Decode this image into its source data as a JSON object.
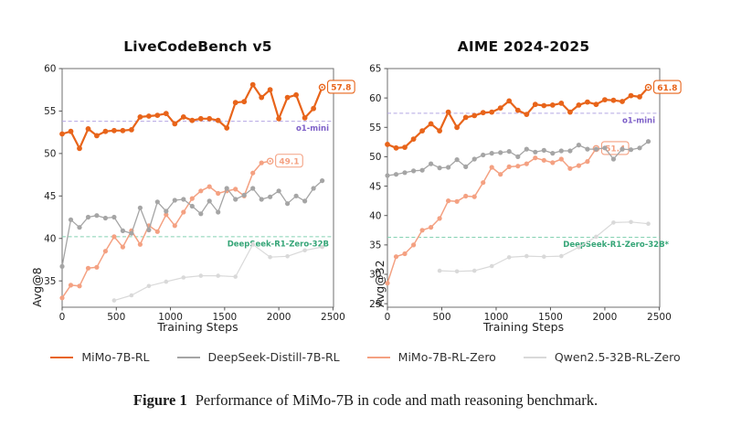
{
  "caption": {
    "label": "Figure 1",
    "text": "Performance of MiMo-7B in code and math reasoning benchmark."
  },
  "legend": {
    "items": [
      {
        "label": "MiMo-7B-RL",
        "color": "#e8641a"
      },
      {
        "label": "DeepSeek-Distill-7B-RL",
        "color": "#a5a5a5"
      },
      {
        "label": "MiMo-7B-RL-Zero",
        "color": "#f4a182"
      },
      {
        "label": "Qwen2.5-32B-RL-Zero",
        "color": "#d9d9d9"
      }
    ]
  },
  "chart_data": [
    {
      "type": "line",
      "title": "LiveCodeBench v5",
      "xlabel": "Training Steps",
      "ylabel": "Avg@8",
      "xlim": [
        0,
        2505
      ],
      "ylim": [
        31.9,
        60.0
      ],
      "xticks": [
        0,
        500,
        1000,
        1500,
        2000,
        2500
      ],
      "yticks": [
        35,
        40,
        45,
        50,
        55,
        60
      ],
      "legend_position": "below-figure",
      "grid": false,
      "ref_lines": [
        {
          "label": "o1-mini",
          "value": 53.8,
          "line_color": "#b4a6e4",
          "text_color": "#7e60c8",
          "label_overflow": false
        },
        {
          "label": "DeepSeek-R1-Zero-32B",
          "value": 40.2,
          "line_color": "#85d1b2",
          "text_color": "#35a577",
          "label_overflow": false
        }
      ],
      "series": [
        {
          "name": "MiMo-7B-RL",
          "color": "#e8641a",
          "end_label": "57.8",
          "x": [
            0,
            80,
            160,
            240,
            320,
            400,
            480,
            560,
            640,
            720,
            800,
            880,
            960,
            1040,
            1120,
            1200,
            1280,
            1360,
            1440,
            1520,
            1600,
            1680,
            1760,
            1840,
            1920,
            2000,
            2080,
            2160,
            2240,
            2320,
            2400
          ],
          "y": [
            52.3,
            52.6,
            50.6,
            52.9,
            52.1,
            52.6,
            52.7,
            52.7,
            52.8,
            54.3,
            54.4,
            54.5,
            54.7,
            53.5,
            54.3,
            53.9,
            54.1,
            54.1,
            53.9,
            53.0,
            56.0,
            56.1,
            58.1,
            56.6,
            57.5,
            54.1,
            56.6,
            56.9,
            54.2,
            55.3,
            57.8
          ]
        },
        {
          "name": "DeepSeek-Distill-7B-RL",
          "color": "#a5a5a5",
          "end_label": null,
          "x": [
            0,
            80,
            160,
            240,
            320,
            400,
            480,
            560,
            640,
            720,
            800,
            880,
            960,
            1040,
            1120,
            1200,
            1280,
            1360,
            1440,
            1520,
            1600,
            1680,
            1760,
            1840,
            1920,
            2000,
            2080,
            2160,
            2240,
            2320,
            2400
          ],
          "y": [
            36.7,
            42.2,
            41.3,
            42.5,
            42.7,
            42.4,
            42.5,
            40.9,
            40.6,
            43.6,
            41.0,
            44.3,
            43.2,
            44.5,
            44.6,
            43.8,
            42.9,
            44.4,
            43.1,
            45.9,
            44.6,
            45.1,
            45.9,
            44.6,
            44.9,
            45.6,
            44.1,
            45.0,
            44.4,
            45.9,
            46.8
          ]
        },
        {
          "name": "MiMo-7B-RL-Zero",
          "color": "#f4a182",
          "end_label": "49.1",
          "x": [
            0,
            80,
            160,
            240,
            320,
            400,
            480,
            560,
            640,
            720,
            800,
            880,
            960,
            1040,
            1120,
            1200,
            1280,
            1360,
            1440,
            1520,
            1600,
            1680,
            1760,
            1840,
            1920
          ],
          "y": [
            33.0,
            34.5,
            34.4,
            36.5,
            36.6,
            38.5,
            40.2,
            39.0,
            40.9,
            39.3,
            41.5,
            40.8,
            42.8,
            41.5,
            43.1,
            44.7,
            45.6,
            46.1,
            45.3,
            45.6,
            45.8,
            45.0,
            47.7,
            48.9,
            49.1
          ]
        },
        {
          "name": "Qwen2.5-32B-RL-Zero",
          "color": "#d9d9d9",
          "end_label": null,
          "x": [
            480,
            640,
            800,
            960,
            1120,
            1280,
            1440,
            1600,
            1760,
            1920,
            2080,
            2240,
            2400
          ],
          "y": [
            32.7,
            33.3,
            34.4,
            34.9,
            35.4,
            35.6,
            35.6,
            35.5,
            39.3,
            37.8,
            37.9,
            38.6,
            39.0
          ]
        }
      ]
    },
    {
      "type": "line",
      "title": "AIME 2024-2025",
      "xlabel": "Training Steps",
      "ylabel": "Avg@32",
      "xlim": [
        0,
        2505
      ],
      "ylim": [
        24.4,
        65.0
      ],
      "xticks": [
        0,
        500,
        1000,
        1500,
        2000,
        2500
      ],
      "yticks": [
        25,
        30,
        35,
        40,
        45,
        50,
        55,
        60,
        65
      ],
      "legend_position": "below-figure",
      "grid": false,
      "ref_lines": [
        {
          "label": "o1-mini",
          "value": 57.4,
          "line_color": "#b4a6e4",
          "text_color": "#7e60c8",
          "label_overflow": false
        },
        {
          "label": "DeepSeek-R1-Zero-32B*",
          "value": 36.3,
          "line_color": "#85d1b2",
          "text_color": "#35a577",
          "label_overflow": true
        }
      ],
      "series": [
        {
          "name": "MiMo-7B-RL",
          "color": "#e8641a",
          "end_label": "61.8",
          "x": [
            0,
            80,
            160,
            240,
            320,
            400,
            480,
            560,
            640,
            720,
            800,
            880,
            960,
            1040,
            1120,
            1200,
            1280,
            1360,
            1440,
            1520,
            1600,
            1680,
            1760,
            1840,
            1920,
            2000,
            2080,
            2160,
            2240,
            2320,
            2400
          ],
          "y": [
            52.1,
            51.5,
            51.6,
            53.0,
            54.4,
            55.6,
            54.4,
            57.6,
            55.0,
            56.7,
            57.0,
            57.5,
            57.6,
            58.3,
            59.5,
            57.9,
            57.2,
            58.9,
            58.7,
            58.8,
            59.1,
            57.6,
            58.8,
            59.3,
            58.9,
            59.7,
            59.6,
            59.4,
            60.4,
            60.2,
            61.8
          ]
        },
        {
          "name": "DeepSeek-Distill-7B-RL",
          "color": "#a5a5a5",
          "end_label": null,
          "x": [
            0,
            80,
            160,
            240,
            320,
            400,
            480,
            560,
            640,
            720,
            800,
            880,
            960,
            1040,
            1120,
            1200,
            1280,
            1360,
            1440,
            1520,
            1600,
            1680,
            1760,
            1840,
            1920,
            2000,
            2080,
            2160,
            2240,
            2320,
            2400
          ],
          "y": [
            46.8,
            47.0,
            47.3,
            47.6,
            47.7,
            48.8,
            48.1,
            48.2,
            49.5,
            48.3,
            49.6,
            50.3,
            50.6,
            50.7,
            50.9,
            50.0,
            51.3,
            50.8,
            51.1,
            50.6,
            51.0,
            51.0,
            52.0,
            51.3,
            51.3,
            51.5,
            49.6,
            51.3,
            51.2,
            51.5,
            52.6
          ]
        },
        {
          "name": "MiMo-7B-RL-Zero",
          "color": "#f4a182",
          "end_label": "51.4",
          "x": [
            0,
            80,
            160,
            240,
            320,
            400,
            480,
            560,
            640,
            720,
            800,
            880,
            960,
            1040,
            1120,
            1200,
            1280,
            1360,
            1440,
            1520,
            1600,
            1680,
            1760,
            1840,
            1920
          ],
          "y": [
            28.5,
            33.0,
            33.5,
            35.0,
            37.5,
            38.0,
            39.5,
            42.5,
            42.4,
            43.3,
            43.2,
            45.6,
            48.2,
            47.0,
            48.3,
            48.4,
            48.8,
            49.8,
            49.4,
            49.0,
            49.6,
            48.0,
            48.5,
            49.2,
            51.4
          ]
        },
        {
          "name": "Qwen2.5-32B-RL-Zero",
          "color": "#d9d9d9",
          "end_label": null,
          "x": [
            480,
            640,
            800,
            960,
            1120,
            1280,
            1440,
            1600,
            1760,
            1920,
            2080,
            2240,
            2400
          ],
          "y": [
            30.6,
            30.5,
            30.6,
            31.4,
            32.9,
            33.1,
            33.0,
            33.1,
            34.6,
            36.4,
            38.8,
            38.9,
            38.6
          ]
        }
      ]
    }
  ]
}
